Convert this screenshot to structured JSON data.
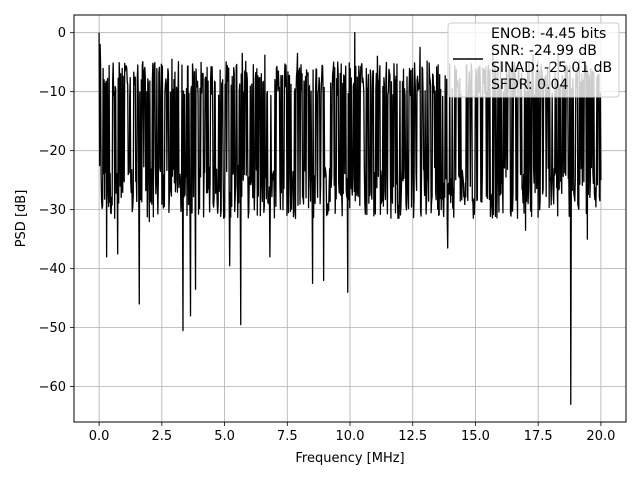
{
  "chart_data": {
    "type": "line",
    "xlabel": "Frequency [MHz]",
    "ylabel": "PSD [dB]",
    "xlim": [
      -1.0,
      21.0
    ],
    "ylim": [
      -66.0,
      3.0
    ],
    "xticks": [
      0.0,
      2.5,
      5.0,
      7.5,
      10.0,
      12.5,
      15.0,
      17.5,
      20.0
    ],
    "xtick_labels": [
      "0.0",
      "2.5",
      "5.0",
      "7.5",
      "10.0",
      "12.5",
      "15.0",
      "17.5",
      "20.0"
    ],
    "yticks": [
      0,
      -10,
      -20,
      -30,
      -40,
      -50,
      -60
    ],
    "ytick_labels": [
      "0",
      "−10",
      "−20",
      "−30",
      "−40",
      "−50",
      "−60"
    ],
    "grid": true,
    "legend_placement": "top-right",
    "colors": {
      "series": "#000000",
      "grid": "#b0b0b0"
    },
    "series": [
      {
        "name": "ENOB: -4.45 bits",
        "legend_lines": [
          "ENOB: -4.45 bits",
          "SNR: -24.99 dB",
          "SINAD: -25.01 dB",
          "SFDR: 0.04"
        ],
        "x_range": [
          0.0,
          20.0
        ],
        "num_points": 1000,
        "band_upper_dB": -9.0,
        "band_lower_dB": -27.0,
        "peaks": [
          {
            "x": 0.0,
            "y": 0.0
          },
          {
            "x": 0.05,
            "y": -2.0
          },
          {
            "x": 1.05,
            "y": -6.5
          },
          {
            "x": 2.9,
            "y": -4.5
          },
          {
            "x": 3.3,
            "y": -5.5
          },
          {
            "x": 5.7,
            "y": -3.5
          },
          {
            "x": 6.6,
            "y": -3.8
          },
          {
            "x": 7.9,
            "y": -3.5
          },
          {
            "x": 10.2,
            "y": 0.0
          },
          {
            "x": 11.1,
            "y": -4.0
          },
          {
            "x": 12.8,
            "y": -2.5
          },
          {
            "x": 15.7,
            "y": -3.0
          },
          {
            "x": 17.3,
            "y": -3.8
          },
          {
            "x": 18.3,
            "y": -3.5
          }
        ],
        "dips": [
          {
            "x": 0.3,
            "y": -38.0
          },
          {
            "x": 0.75,
            "y": -37.5
          },
          {
            "x": 1.6,
            "y": -46.0
          },
          {
            "x": 2.0,
            "y": -32.0
          },
          {
            "x": 3.35,
            "y": -50.5
          },
          {
            "x": 3.65,
            "y": -48.0
          },
          {
            "x": 3.85,
            "y": -43.5
          },
          {
            "x": 5.2,
            "y": -39.5
          },
          {
            "x": 5.65,
            "y": -49.5
          },
          {
            "x": 6.8,
            "y": -38.0
          },
          {
            "x": 8.5,
            "y": -42.5
          },
          {
            "x": 8.95,
            "y": -42.0
          },
          {
            "x": 9.9,
            "y": -44.0
          },
          {
            "x": 13.9,
            "y": -36.5
          },
          {
            "x": 17.0,
            "y": -33.5
          },
          {
            "x": 18.8,
            "y": -63.0
          },
          {
            "x": 19.45,
            "y": -35.0
          }
        ]
      }
    ]
  }
}
